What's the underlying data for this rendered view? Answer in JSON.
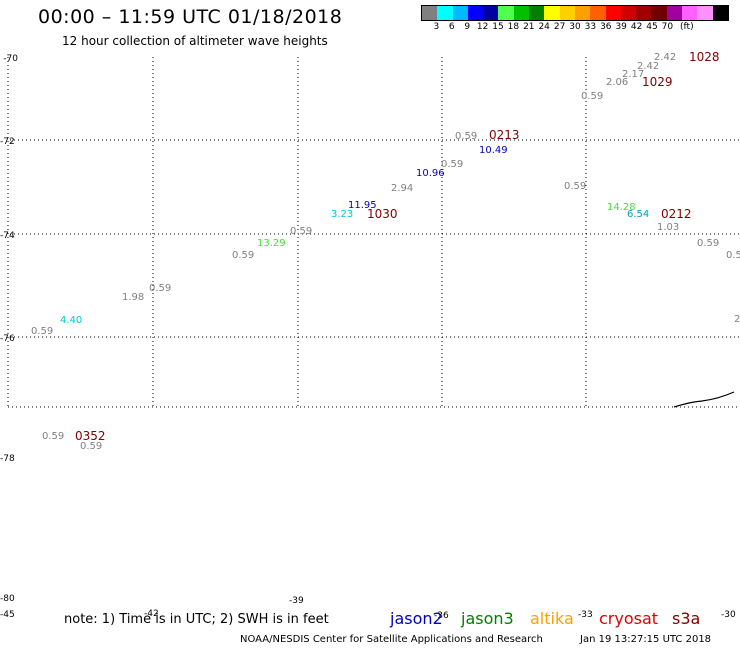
{
  "header": {
    "title": "00:00  –  11:59 UTC 01/18/2018",
    "subtitle": "12 hour collection of altimeter wave heights"
  },
  "legend": {
    "colors": [
      "#808080",
      "#00ffff",
      "#00b8ff",
      "#0000ff",
      "#0000a0",
      "#50ff50",
      "#00c000",
      "#008000",
      "#ffff00",
      "#ffd000",
      "#ffa000",
      "#ff6000",
      "#ff0000",
      "#d00000",
      "#a00000",
      "#700000",
      "#a000a0",
      "#ff60ff",
      "#ff90ff",
      "#000000"
    ],
    "labels": [
      "3",
      "6",
      "9",
      "12",
      "15",
      "18",
      "21",
      "24",
      "27",
      "30",
      "33",
      "36",
      "39",
      "42",
      "45",
      "70",
      "(ft)"
    ]
  },
  "map": {
    "lat_labels": [
      "-70",
      "-72",
      "-74",
      "-76",
      "-78",
      "-80"
    ],
    "lon_labels": [
      "-45",
      "-42",
      "-39",
      "-36",
      "-33",
      "-30"
    ],
    "wave_heights": [
      {
        "text": "2.42",
        "color": "#808080"
      },
      {
        "text": "2.42",
        "color": "#808080"
      },
      {
        "text": "2.17",
        "color": "#808080"
      },
      {
        "text": "2.06",
        "color": "#808080"
      },
      {
        "text": "0.59",
        "color": "#808080"
      },
      {
        "text": "0.59",
        "color": "#808080"
      },
      {
        "text": "10.49",
        "color": "#0000c0"
      },
      {
        "text": "0.59",
        "color": "#808080"
      },
      {
        "text": "10.96",
        "color": "#0000c0"
      },
      {
        "text": "2.94",
        "color": "#808080"
      },
      {
        "text": "11.95",
        "color": "#0000c0"
      },
      {
        "text": "3.23",
        "color": "#00c8d8"
      },
      {
        "text": "0.59",
        "color": "#808080"
      },
      {
        "text": "13.29",
        "color": "#40e040"
      },
      {
        "text": "0.59",
        "color": "#808080"
      },
      {
        "text": "0.59",
        "color": "#808080"
      },
      {
        "text": "1.98",
        "color": "#808080"
      },
      {
        "text": "4.40",
        "color": "#00c8d8"
      },
      {
        "text": "0.59",
        "color": "#808080"
      },
      {
        "text": "0.59",
        "color": "#808080"
      },
      {
        "text": "14.28",
        "color": "#40e040"
      },
      {
        "text": "6.54",
        "color": "#00a0b0"
      },
      {
        "text": "1.03",
        "color": "#808080"
      },
      {
        "text": "0.59",
        "color": "#808080"
      },
      {
        "text": "0.5",
        "color": "#808080"
      },
      {
        "text": "2",
        "color": "#808080"
      },
      {
        "text": "0.59",
        "color": "#808080"
      },
      {
        "text": "0.59",
        "color": "#808080"
      }
    ],
    "pass_times": [
      "1028",
      "1029",
      "0213",
      "1030",
      "0212",
      "0352"
    ],
    "pass_time_color": "#800000"
  },
  "note": "note: 1) Time is in UTC; 2) SWH is in feet",
  "satellites": [
    {
      "name": "jason2",
      "color": "#0000c0"
    },
    {
      "name": "jason3",
      "color": "#008000"
    },
    {
      "name": "altika",
      "color": "#ffa000"
    },
    {
      "name": "cryosat",
      "color": "#e00000"
    },
    {
      "name": "s3a",
      "color": "#800000"
    }
  ],
  "footer": {
    "credit": "NOAA/NESDIS Center for Satellite Applications and Research",
    "generated": "Jan 19 13:27:15 UTC 2018"
  }
}
